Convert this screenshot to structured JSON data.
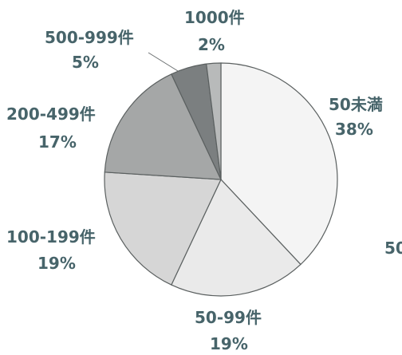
{
  "chart_data": {
    "type": "pie",
    "title": "",
    "start_angle_deg": 0,
    "direction": "clockwise",
    "slices": [
      {
        "label": "50未満",
        "percent_label": "38%",
        "value": 38,
        "color": "#f4f4f4"
      },
      {
        "label": "50-99件",
        "percent_label": "19%",
        "value": 19,
        "color": "#eaeaea"
      },
      {
        "label": "100-199件",
        "percent_label": "19%",
        "value": 19,
        "color": "#d6d6d6"
      },
      {
        "label": "200-499件",
        "percent_label": "17%",
        "value": 17,
        "color": "#a5a7a7"
      },
      {
        "label": "500-999件",
        "percent_label": "5%",
        "value": 5,
        "color": "#7b7f80"
      },
      {
        "label": "1000件",
        "percent_label": "2%",
        "value": 2,
        "color": "#b8baba"
      }
    ],
    "extra_text": "50"
  }
}
